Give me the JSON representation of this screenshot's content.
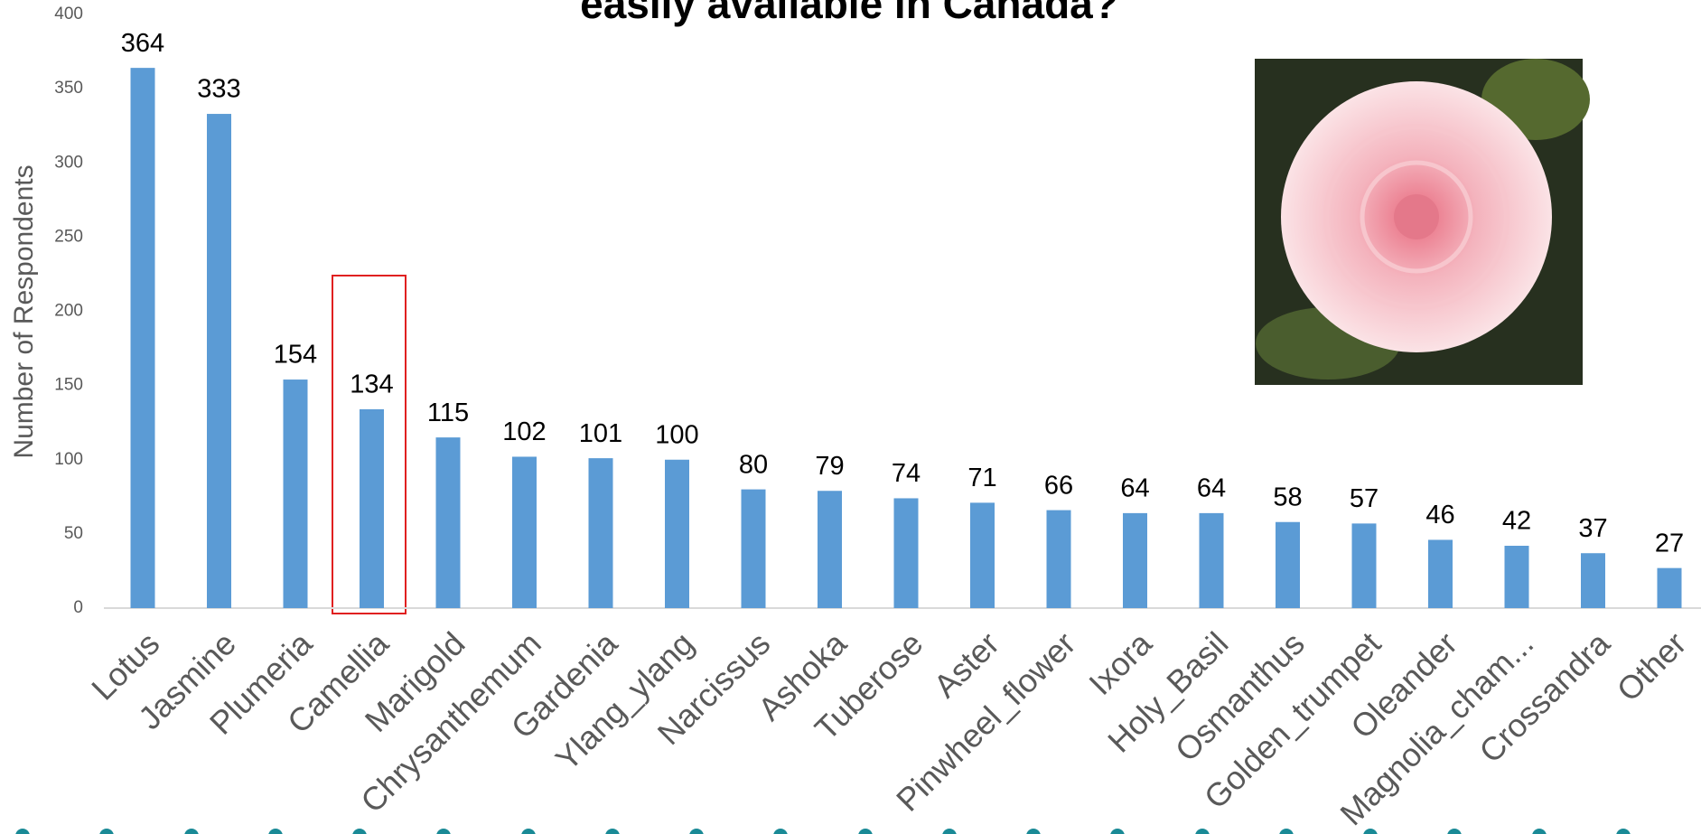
{
  "chart_data": {
    "type": "bar",
    "title": "easily available in Canada?",
    "y_label": "Number of Respondents",
    "categories": [
      "Lotus",
      "Jasmine",
      "Plumeria",
      "Camellia",
      "Marigold",
      "Chrysanthemum",
      "Gardenia",
      "Ylang_ylang",
      "Narcissus",
      "Ashoka",
      "Tuberose",
      "Aster",
      "Pinwheel_flower",
      "Ixora",
      "Holy_Basil",
      "Osmanthus",
      "Golden_trumpet",
      "Oleander",
      "Magnolia_cham...",
      "Crossandra",
      "Other"
    ],
    "values": [
      364,
      333,
      154,
      134,
      115,
      102,
      101,
      100,
      80,
      79,
      74,
      71,
      66,
      64,
      64,
      58,
      57,
      46,
      42,
      37,
      27
    ],
    "color": "#5b9bd5",
    "ylim": [
      0,
      400
    ],
    "yticks": [
      0,
      50,
      100,
      150,
      200,
      250,
      300,
      350,
      400
    ],
    "grid": false
  }
}
